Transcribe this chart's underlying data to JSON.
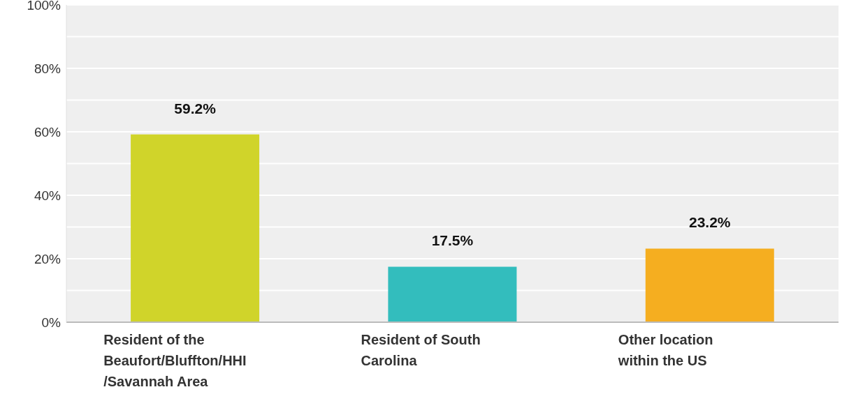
{
  "chart_data": {
    "type": "bar",
    "categories": [
      "Resident of the Beaufort/Bluffton/HHI /Savannah Area",
      "Resident of South Carolina",
      "Other location within the US"
    ],
    "values": [
      59.2,
      17.5,
      23.2
    ],
    "colors": [
      "#d0d42a",
      "#33bdbd",
      "#f5ae20"
    ],
    "value_labels": [
      "59.2%",
      "17.5%",
      "23.2%"
    ],
    "ylim": [
      0,
      100
    ],
    "yticks": [
      {
        "value": 0,
        "label": "0%"
      },
      {
        "value": 10,
        "label": null
      },
      {
        "value": 20,
        "label": "20%"
      },
      {
        "value": 30,
        "label": null
      },
      {
        "value": 40,
        "label": "40%"
      },
      {
        "value": 50,
        "label": null
      },
      {
        "value": 60,
        "label": "60%"
      },
      {
        "value": 70,
        "label": null
      },
      {
        "value": 80,
        "label": "80%"
      },
      {
        "value": 90,
        "label": null
      },
      {
        "value": 100,
        "label": "100%"
      }
    ],
    "grid": "y"
  }
}
